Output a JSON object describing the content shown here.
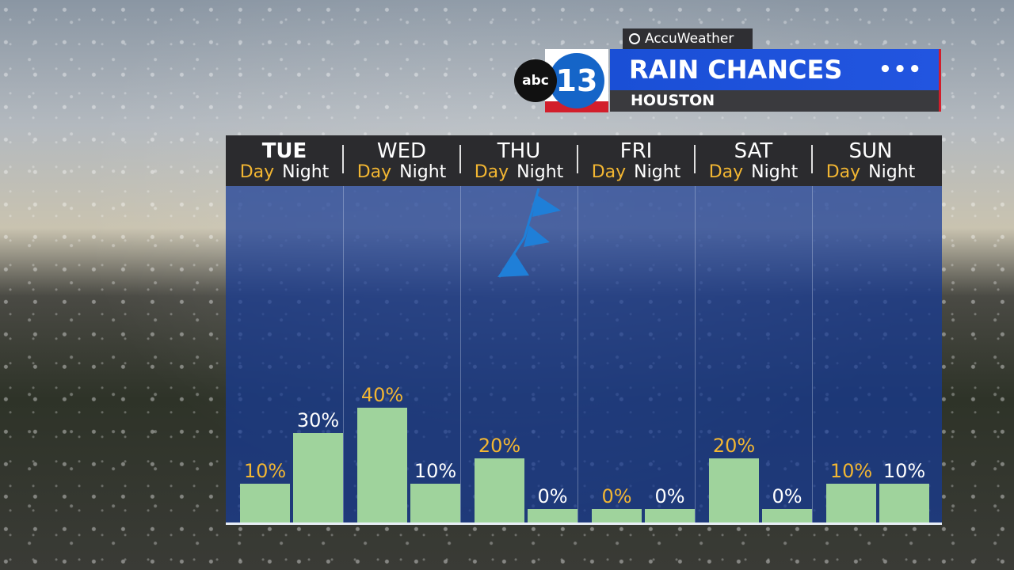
{
  "brand": {
    "accuweather": "AccuWeather",
    "abc": "abc",
    "channel": "13"
  },
  "header": {
    "title": "RAIN CHANCES",
    "location": "HOUSTON",
    "menu_dots": "•••"
  },
  "colors": {
    "bar": "#9fd39c",
    "day_label": "#f2b632",
    "night_label": "#ffffff",
    "plot_bg": "#1f4fb8"
  },
  "chart_data": {
    "type": "bar",
    "title": "RAIN CHANCES",
    "subtitle": "HOUSTON",
    "unit": "%",
    "ylim": [
      0,
      100
    ],
    "days": [
      {
        "name": "TUE",
        "day_label": "Day",
        "night_label": "Night",
        "day": 10,
        "night": 30,
        "day_text": "10%",
        "night_text": "30%"
      },
      {
        "name": "WED",
        "day_label": "Day",
        "night_label": "Night",
        "day": 40,
        "night": 10,
        "day_text": "40%",
        "night_text": "10%"
      },
      {
        "name": "THU",
        "day_label": "Day",
        "night_label": "Night",
        "day": 20,
        "night": 0,
        "day_text": "20%",
        "night_text": "0%"
      },
      {
        "name": "FRI",
        "day_label": "Day",
        "night_label": "Night",
        "day": 0,
        "night": 0,
        "day_text": "0%",
        "night_text": "0%"
      },
      {
        "name": "SAT",
        "day_label": "Day",
        "night_label": "Night",
        "day": 20,
        "night": 0,
        "day_text": "20%",
        "night_text": "0%"
      },
      {
        "name": "SUN",
        "day_label": "Day",
        "night_label": "Night",
        "day": 10,
        "night": 10,
        "day_text": "10%",
        "night_text": "10%"
      }
    ],
    "annotations": [
      "cold-front-icon"
    ]
  }
}
